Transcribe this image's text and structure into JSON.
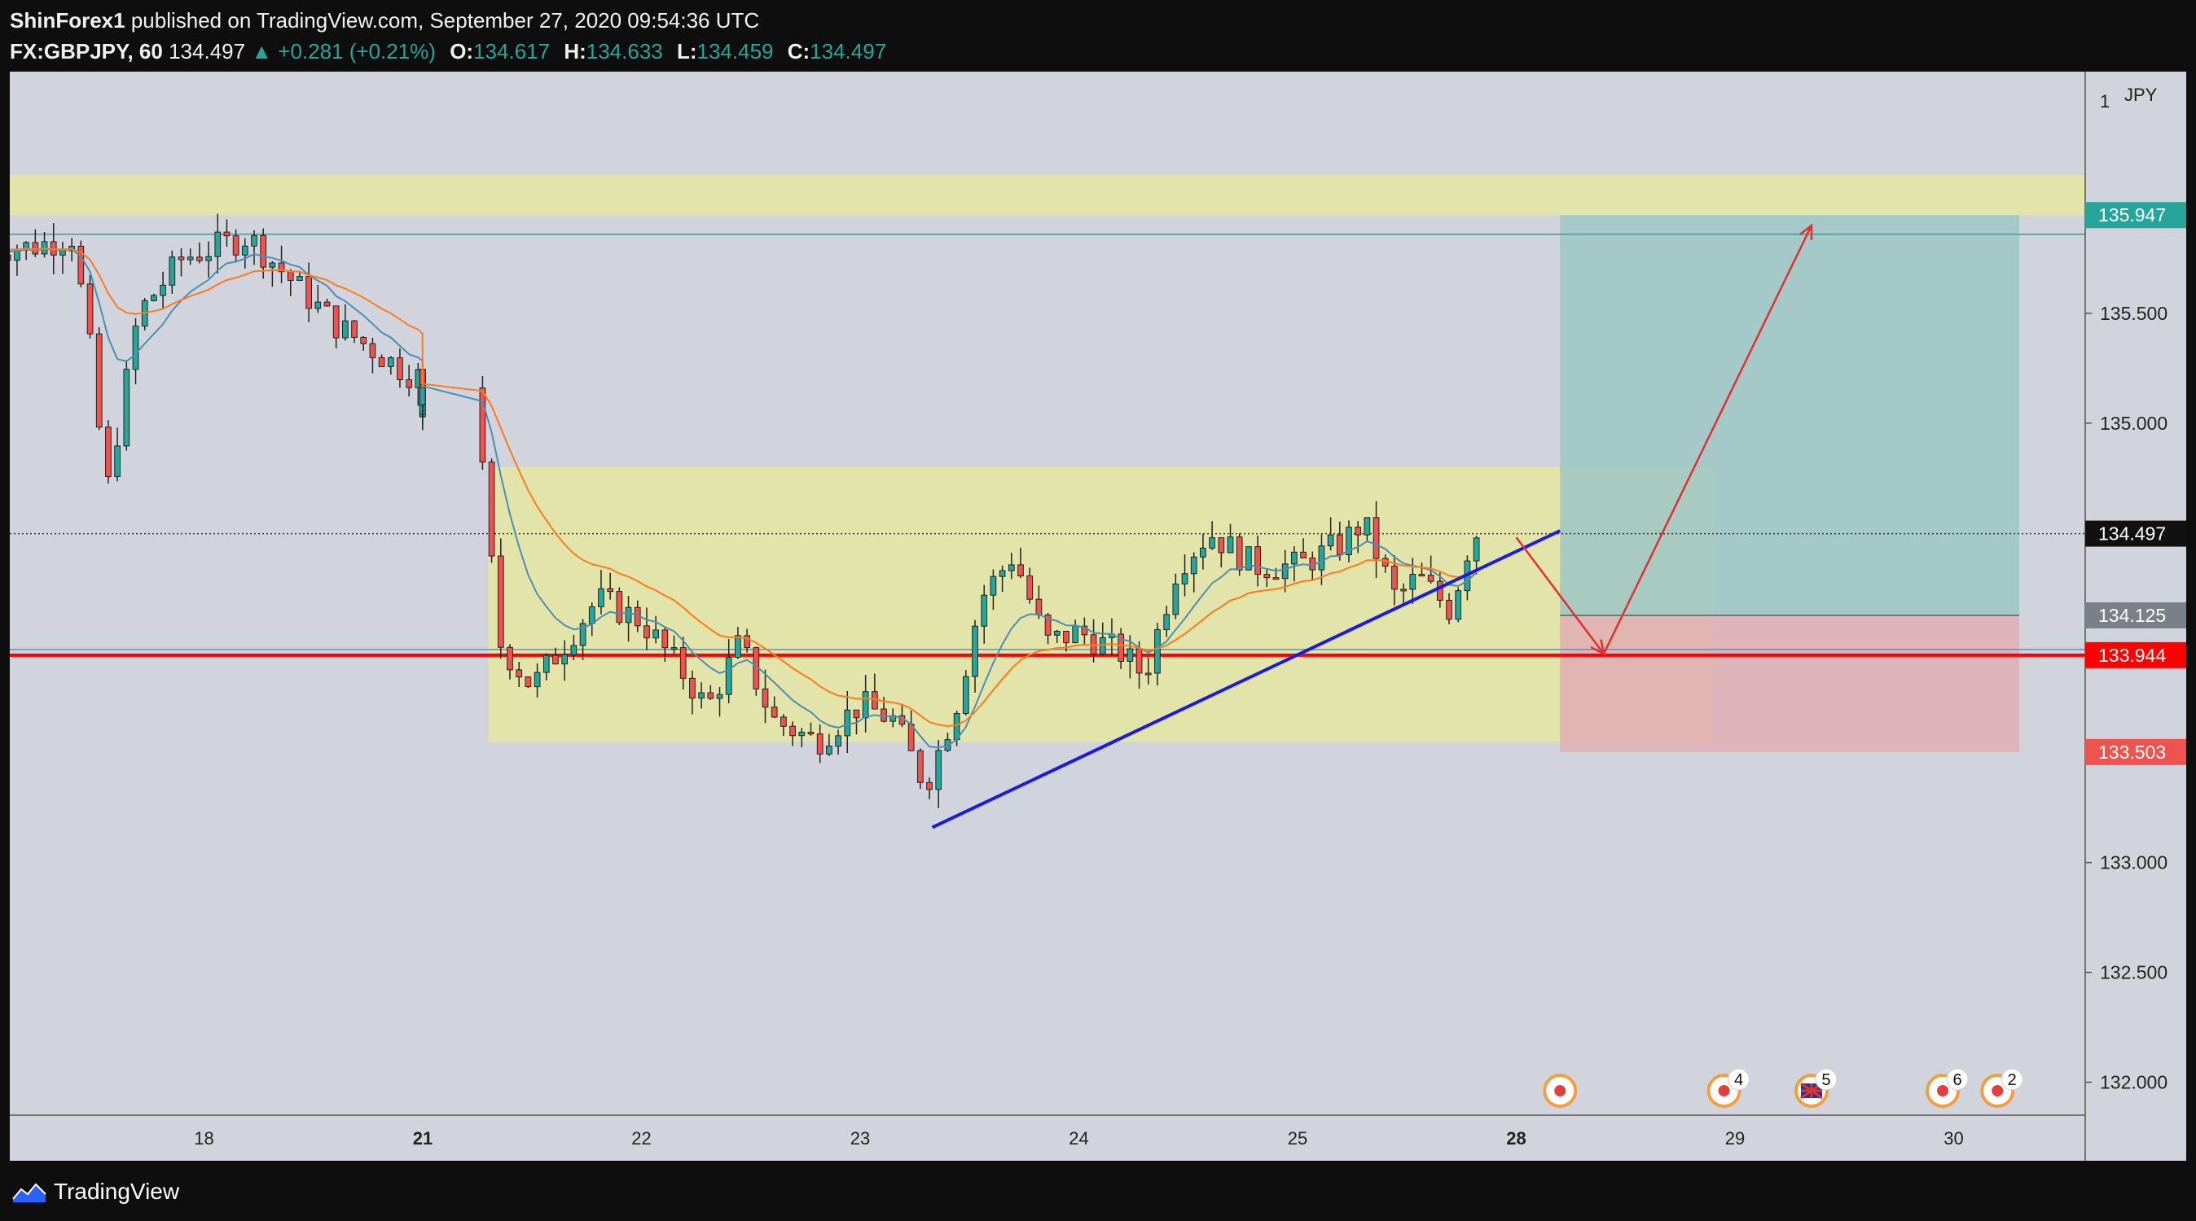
{
  "header": {
    "author": "ShinForex1",
    "published": " published on TradingView.com, September 27, 2020 09:54:36 UTC",
    "symbol": "FX:GBPJPY, 60",
    "last": "134.497",
    "change": "▲ +0.281 (+0.21%)",
    "o_label": "O:",
    "o": "134.617",
    "h_label": "H:",
    "h": "134.633",
    "l_label": "L:",
    "l": "134.459",
    "c_label": "C:",
    "c": "134.497"
  },
  "footer": {
    "brand": "TradingView"
  },
  "colors": {
    "background": "#d1d4dc",
    "bull": "#26a69a",
    "bear": "#ef5350",
    "ema_fast": "#4a8fb5",
    "ema_slow": "#ff7a1a",
    "zone": "#e6e6a0",
    "target": "#9ec5c6",
    "stop": "#e0aeb4",
    "trendline": "#1a1ae6",
    "support_line": "#ff0000",
    "arrow": "#e03030"
  },
  "chart_data": {
    "type": "candlestick",
    "symbol": "FX:GBPJPY",
    "interval": "60",
    "x_ticks": [
      "18",
      "21",
      "22",
      "23",
      "24",
      "25",
      "28",
      "29",
      "30"
    ],
    "y_axis": {
      "unit": "JPY",
      "scale_marker": "1",
      "ticks": [
        132.0,
        132.5,
        133.0,
        135.0,
        135.5
      ],
      "ylim": [
        131.85,
        136.6
      ]
    },
    "price_labels": [
      {
        "value": "135.947",
        "kind": "target"
      },
      {
        "value": "134.497",
        "kind": "last"
      },
      {
        "value": "134.125",
        "kind": "entry"
      },
      {
        "value": "133.944",
        "kind": "support"
      },
      {
        "value": "133.503",
        "kind": "stop"
      }
    ],
    "levels": {
      "last": 134.497,
      "entry": 134.125,
      "support": 133.944,
      "target": 135.947,
      "stop": 133.503,
      "teal_line": 135.86
    },
    "zones": [
      {
        "x0": 1.4,
        "x1": 30.8,
        "y0": 135.947,
        "y1": 136.13,
        "name": "resistance-zone"
      },
      {
        "x0": 21.3,
        "x1": 28.9,
        "y0": 133.55,
        "y1": 134.8,
        "name": "range-zone"
      }
    ],
    "position": {
      "type": "long",
      "x0": 28.2,
      "x1": 30.3,
      "entry": 134.125,
      "target": 135.947,
      "stop": 133.503
    },
    "trendline": {
      "x": [
        23.33,
        28.2
      ],
      "y": [
        133.16,
        134.51
      ]
    },
    "projection": {
      "points": [
        [
          27.8,
          134.48
        ],
        [
          28.4,
          133.95
        ],
        [
          29.35,
          135.9
        ]
      ]
    },
    "events": [
      {
        "x": 28.2,
        "badge": ""
      },
      {
        "x": 28.95,
        "badge": "4"
      },
      {
        "x": 29.35,
        "badge": "5",
        "flag": true
      },
      {
        "x": 29.95,
        "badge": "6"
      },
      {
        "x": 30.2,
        "badge": "2"
      }
    ],
    "candles_anchor": [
      [
        17.2,
        135.8
      ],
      [
        17.4,
        135.85
      ],
      [
        17.5,
        135.2
      ],
      [
        17.55,
        134.65
      ],
      [
        17.7,
        135.5
      ],
      [
        17.9,
        135.75
      ],
      [
        18.2,
        135.85
      ],
      [
        18.3,
        135.75
      ],
      [
        18.6,
        135.45
      ],
      [
        18.9,
        135.25
      ],
      [
        19.2,
        135.1
      ],
      [
        19.4,
        135.05
      ],
      [
        19.7,
        135.15
      ],
      [
        19.95,
        135.2
      ],
      [
        20.1,
        135.1
      ],
      [
        20.25,
        135.18
      ],
      [
        21.25,
        135.0
      ],
      [
        21.35,
        134.0
      ],
      [
        21.5,
        133.8
      ],
      [
        21.8,
        134.2
      ],
      [
        22.0,
        134.1
      ],
      [
        22.2,
        133.85
      ],
      [
        22.3,
        133.7
      ],
      [
        22.45,
        134.0
      ],
      [
        22.6,
        133.65
      ],
      [
        22.8,
        133.55
      ],
      [
        23.0,
        133.72
      ],
      [
        23.15,
        133.65
      ],
      [
        23.3,
        133.35
      ],
      [
        23.45,
        133.75
      ],
      [
        23.55,
        134.2
      ],
      [
        23.7,
        134.4
      ],
      [
        23.85,
        134.0
      ],
      [
        24.0,
        134.05
      ],
      [
        24.2,
        133.95
      ],
      [
        24.3,
        133.85
      ],
      [
        24.45,
        134.35
      ],
      [
        24.6,
        134.5
      ],
      [
        24.8,
        134.35
      ],
      [
        25.0,
        134.35
      ],
      [
        25.2,
        134.45
      ],
      [
        25.3,
        134.55
      ],
      [
        25.45,
        134.2
      ],
      [
        25.55,
        134.3
      ],
      [
        25.7,
        134.15
      ],
      [
        25.8,
        134.5
      ]
    ]
  }
}
